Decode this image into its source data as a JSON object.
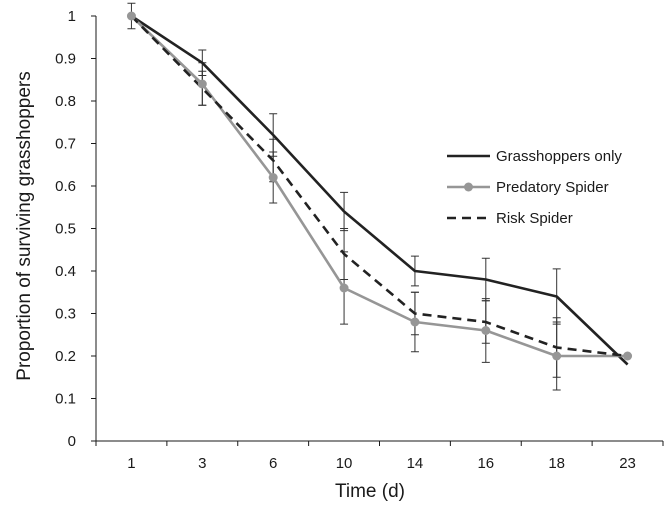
{
  "chart_data": {
    "type": "line",
    "xlabel": "Time (d)",
    "ylabel": "Proportion of surviving grasshoppers",
    "categories": [
      "1",
      "3",
      "6",
      "10",
      "14",
      "16",
      "18",
      "23"
    ],
    "ylim": [
      0,
      1
    ],
    "yticks": [
      0,
      0.1,
      0.2,
      0.3,
      0.4,
      0.5,
      0.6,
      0.7,
      0.8,
      0.9,
      1
    ],
    "ytick_labels": [
      "0",
      "0.1",
      "0.2",
      "0.3",
      "0.4",
      "0.5",
      "0.6",
      "0.7",
      "0.8",
      "0.9",
      "1"
    ],
    "grid": false,
    "legend_position": "right",
    "series": [
      {
        "name": "Grasshoppers only",
        "color": "#222222",
        "line_style": "solid",
        "marker": "none",
        "values": [
          1.0,
          0.89,
          0.72,
          0.54,
          0.4,
          0.38,
          0.34,
          0.18
        ],
        "errors": [
          0.0,
          0.03,
          0.05,
          0.045,
          0.035,
          0.05,
          0.065,
          0.0
        ]
      },
      {
        "name": "Predatory Spider",
        "color": "#969696",
        "line_style": "solid",
        "marker": "circle",
        "values": [
          1.0,
          0.84,
          0.62,
          0.36,
          0.28,
          0.26,
          0.2,
          0.2
        ],
        "errors": [
          0.03,
          0.05,
          0.06,
          0.085,
          0.07,
          0.075,
          0.08,
          0.0
        ]
      },
      {
        "name": "Risk Spider",
        "color": "#222222",
        "line_style": "dashed",
        "marker": "none",
        "values": [
          1.0,
          0.83,
          0.66,
          0.44,
          0.3,
          0.28,
          0.22,
          0.2
        ],
        "errors": [
          0.0,
          0.04,
          0.05,
          0.06,
          0.05,
          0.05,
          0.07,
          0.0
        ]
      }
    ]
  }
}
